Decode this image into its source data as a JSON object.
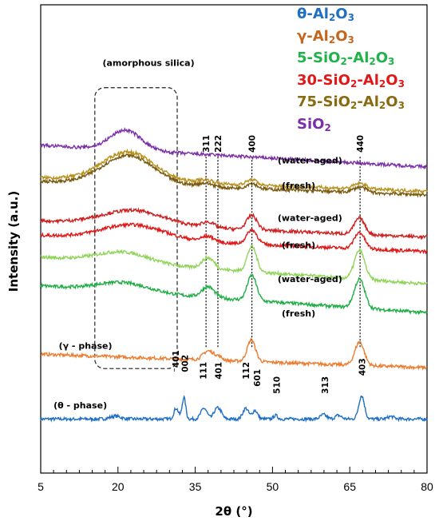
{
  "chart_data": {
    "type": "line",
    "xlabel": "2θ (°)",
    "ylabel": "Intensity (a.u.)",
    "xlim": [
      5,
      80
    ],
    "x_ticks": [
      "5",
      "20",
      "35",
      "50",
      "65",
      "80"
    ],
    "grid": false,
    "legend_position": "top-right",
    "legend": [
      {
        "parts": [
          "θ-Al",
          "2",
          "O",
          "3"
        ],
        "color": "#1f6fc5"
      },
      {
        "parts": [
          "γ-Al",
          "2",
          "O",
          "3"
        ],
        "color": "#c5661e"
      },
      {
        "parts": [
          "5-SiO",
          "2",
          "-Al",
          "2",
          "O",
          "3"
        ],
        "color": "#1fb34a"
      },
      {
        "parts": [
          "30-SiO",
          "2",
          "-Al",
          "2",
          "O",
          "3"
        ],
        "color": "#e01818"
      },
      {
        "parts": [
          "75-SiO",
          "2",
          "-Al",
          "2",
          "O",
          "3"
        ],
        "color": "#8a6a10"
      },
      {
        "parts": [
          "SiO",
          "2"
        ],
        "color": "#7a2fa8"
      }
    ],
    "series": [
      {
        "key": "theta",
        "color": "#1f6fc5",
        "offset": 15,
        "base": 0,
        "slope": 0.0,
        "peaks": [
          [
            19.5,
            0.8,
            1.0
          ],
          [
            31.3,
            3.0,
            0.45
          ],
          [
            32.8,
            6.0,
            0.35
          ],
          [
            36.7,
            3.0,
            0.6
          ],
          [
            39.0,
            2.2,
            0.5
          ],
          [
            39.8,
            2.0,
            0.5
          ],
          [
            44.8,
            3.0,
            0.55
          ],
          [
            46.6,
            2.4,
            0.5
          ],
          [
            50.6,
            1.0,
            0.4
          ],
          [
            59.9,
            1.2,
            0.6
          ],
          [
            62.8,
            1.0,
            0.6
          ],
          [
            67.3,
            6.5,
            0.55
          ],
          [
            73.0,
            0.7,
            0.6
          ]
        ]
      },
      {
        "key": "gamma",
        "color": "#ec7d31",
        "offset": 31,
        "base": 2,
        "slope": -0.05,
        "peaks": [
          [
            37.5,
            2.5,
            1.0
          ],
          [
            39.5,
            1.0,
            0.8
          ],
          [
            45.9,
            6.0,
            0.8
          ],
          [
            66.9,
            6.5,
            0.9
          ]
        ]
      },
      {
        "key": "s5-fresh",
        "color": "#1fae45",
        "offset": 45,
        "base": 7,
        "slope": -0.1,
        "peaks": [
          [
            21,
            2.5,
            5.0
          ],
          [
            37.5,
            3.0,
            1.2
          ],
          [
            46,
            7.0,
            0.9
          ],
          [
            66.9,
            8.0,
            1.0
          ]
        ]
      },
      {
        "key": "s5-aged",
        "color": "#90d45a",
        "offset": 50,
        "base": 10,
        "slope": -0.1,
        "peaks": [
          [
            21,
            3.0,
            5.0
          ],
          [
            37.5,
            3.0,
            1.2
          ],
          [
            46,
            7.0,
            0.9
          ],
          [
            66.9,
            8.0,
            1.0
          ]
        ]
      },
      {
        "key": "s30-fresh",
        "color": "#e01818",
        "offset": 59,
        "base": 7,
        "slope": -0.06,
        "peaks": [
          [
            23,
            4.0,
            6.0
          ],
          [
            37.5,
            1.5,
            1.2
          ],
          [
            46,
            4.0,
            1.0
          ],
          [
            66.9,
            4.5,
            1.0
          ]
        ]
      },
      {
        "key": "s30-aged",
        "color": "#d02020",
        "offset": 62,
        "base": 8,
        "slope": -0.06,
        "peaks": [
          [
            23,
            4.0,
            6.0
          ],
          [
            37.5,
            1.5,
            1.2
          ],
          [
            46,
            4.0,
            1.0
          ],
          [
            66.9,
            4.5,
            1.0
          ]
        ]
      },
      {
        "key": "s75-fresh",
        "color": "#7a5a10",
        "offset": 72,
        "base": 9,
        "slope": -0.05,
        "peaks": [
          [
            22,
            8.0,
            5.0
          ],
          [
            37,
            1.0,
            1.5
          ],
          [
            46,
            1.5,
            1.0
          ],
          [
            67,
            1.5,
            1.2
          ]
        ]
      },
      {
        "key": "s75-aged",
        "color": "#b8921f",
        "offset": 74,
        "base": 8,
        "slope": -0.05,
        "peaks": [
          [
            22,
            8.0,
            5.0
          ],
          [
            37,
            1.0,
            1.5
          ],
          [
            46,
            1.5,
            1.0
          ],
          [
            67,
            1.5,
            1.2
          ]
        ]
      },
      {
        "key": "sio2",
        "color": "#7a2fa8",
        "offset": 85,
        "base": 6,
        "slope": -0.08,
        "peaks": [
          [
            21.5,
            5.5,
            3.0
          ]
        ]
      }
    ],
    "labels": [
      {
        "text": "(θ - phase)",
        "x": 7.5,
        "y": 18.0
      },
      {
        "text": "(γ - phase)",
        "x": 8.5,
        "y": 34.5
      },
      {
        "text": "(fresh)",
        "x": 51.8,
        "y": 43.5
      },
      {
        "text": "(water-aged)",
        "x": 51.0,
        "y": 53.0
      },
      {
        "text": "(fresh)",
        "x": 51.8,
        "y": 62.5
      },
      {
        "text": "(water-aged)",
        "x": 51.0,
        "y": 70.0
      },
      {
        "text": "(fresh)",
        "x": 51.8,
        "y": 79.0
      },
      {
        "text": "(water-aged)",
        "x": 51.0,
        "y": 86.0
      },
      {
        "text": "(amorphous silica)",
        "x": 17.0,
        "y": 113.0
      }
    ],
    "reflections_theta": [
      {
        "hkl": "⁻401",
        "x": 31.2,
        "y": 28
      },
      {
        "hkl": "002",
        "x": 33.0,
        "y": 28
      },
      {
        "hkl": "111",
        "x": 36.5,
        "y": 26
      },
      {
        "hkl": "401",
        "x": 39.5,
        "y": 26
      },
      {
        "hkl": "112",
        "x": 44.8,
        "y": 26
      },
      {
        "hkl": "601",
        "x": 47.0,
        "y": 24
      },
      {
        "hkl": "510",
        "x": 50.8,
        "y": 22
      },
      {
        "hkl": "313",
        "x": 60.2,
        "y": 22
      },
      {
        "hkl": "403",
        "x": 67.4,
        "y": 27
      }
    ],
    "reflections_gamma": [
      {
        "hkl": "311",
        "x": 37.1
      },
      {
        "hkl": "222",
        "x": 39.4
      },
      {
        "hkl": "400",
        "x": 46.0
      },
      {
        "hkl": "440",
        "x": 67.0
      }
    ]
  }
}
